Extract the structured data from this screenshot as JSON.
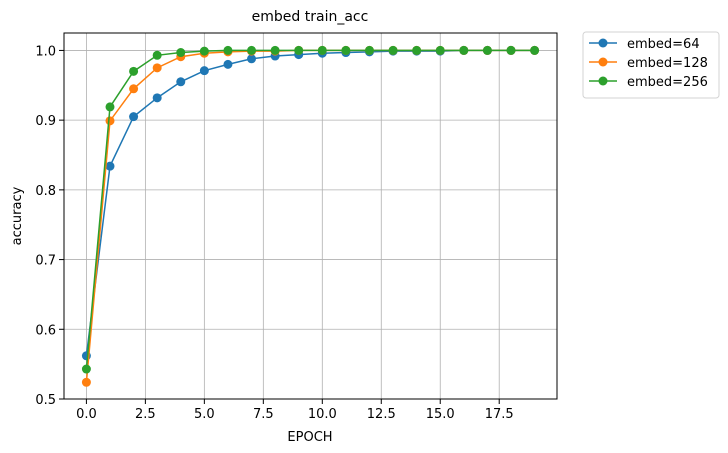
{
  "chart_data": {
    "type": "line",
    "title": "embed train_acc",
    "xlabel": "EPOCH",
    "ylabel": "accuracy",
    "xlim": [
      -0.95,
      19.95
    ],
    "ylim": [
      0.5,
      1.025
    ],
    "xticks": [
      0,
      2.5,
      5,
      7.5,
      10,
      12.5,
      15,
      17.5
    ],
    "xtick_labels": [
      "0.0",
      "2.5",
      "5.0",
      "7.5",
      "10.0",
      "12.5",
      "15.0",
      "17.5"
    ],
    "yticks": [
      0.5,
      0.6,
      0.7,
      0.8,
      0.9,
      1.0
    ],
    "ytick_labels": [
      "0.5",
      "0.6",
      "0.7",
      "0.8",
      "0.9",
      "1.0"
    ],
    "grid": true,
    "legend_position": "outside-top-right",
    "x": [
      0,
      1,
      2,
      3,
      4,
      5,
      6,
      7,
      8,
      9,
      10,
      11,
      12,
      13,
      14,
      15,
      16,
      17,
      18,
      19
    ],
    "series": [
      {
        "name": "embed=64",
        "color": "#1f77b4",
        "values": [
          0.562,
          0.834,
          0.905,
          0.932,
          0.955,
          0.971,
          0.98,
          0.988,
          0.992,
          0.994,
          0.996,
          0.997,
          0.998,
          0.999,
          0.999,
          0.999,
          1.0,
          1.0,
          1.0,
          1.0
        ]
      },
      {
        "name": "embed=128",
        "color": "#ff7f0e",
        "values": [
          0.524,
          0.899,
          0.945,
          0.975,
          0.991,
          0.996,
          0.998,
          0.999,
          0.999,
          1.0,
          1.0,
          1.0,
          1.0,
          1.0,
          1.0,
          1.0,
          1.0,
          1.0,
          1.0,
          1.0
        ]
      },
      {
        "name": "embed=256",
        "color": "#2ca02c",
        "values": [
          0.543,
          0.919,
          0.97,
          0.993,
          0.997,
          0.999,
          1.0,
          1.0,
          1.0,
          1.0,
          1.0,
          1.0,
          1.0,
          1.0,
          1.0,
          1.0,
          1.0,
          1.0,
          1.0,
          1.0
        ]
      }
    ]
  }
}
